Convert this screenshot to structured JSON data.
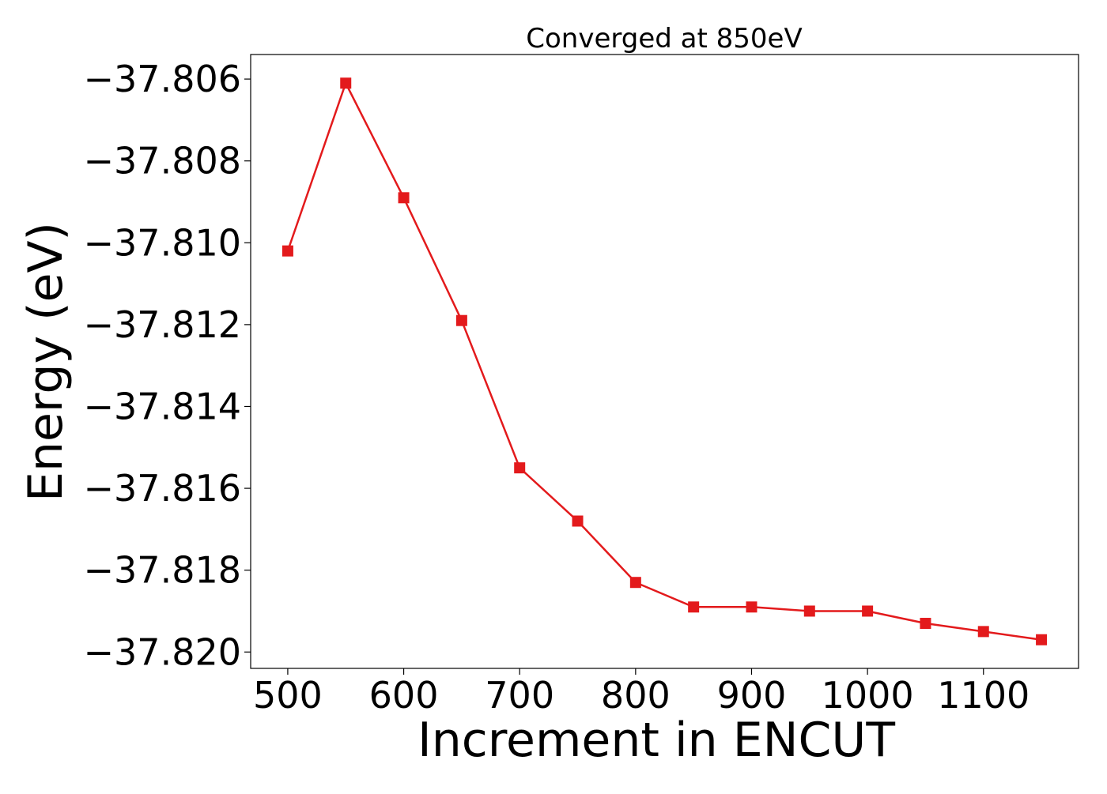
{
  "chart_data": {
    "type": "line",
    "title": "Converged at 850eV",
    "xlabel": "Increment in ENCUT",
    "ylabel": "Energy (eV)",
    "xlim": [
      468,
      1182
    ],
    "ylim": [
      -37.8204,
      -37.8054
    ],
    "x_ticks": [
      500,
      600,
      700,
      800,
      900,
      1000,
      1100
    ],
    "y_ticks": [
      -37.806,
      -37.808,
      -37.81,
      -37.812,
      -37.814,
      -37.816,
      -37.818,
      -37.82
    ],
    "y_tick_labels": [
      "−37.806",
      "−37.808",
      "−37.810",
      "−37.812",
      "−37.814",
      "−37.816",
      "−37.818",
      "−37.820"
    ],
    "grid": false,
    "legend": "none",
    "series": [
      {
        "color": "#e31a1c",
        "marker": "square",
        "x": [
          500,
          550,
          600,
          650,
          700,
          750,
          800,
          850,
          900,
          950,
          1000,
          1050,
          1100,
          1150
        ],
        "y": [
          -37.8102,
          -37.8061,
          -37.8089,
          -37.8119,
          -37.8155,
          -37.8168,
          -37.8183,
          -37.8189,
          -37.8189,
          -37.819,
          -37.819,
          -37.8193,
          -37.8195,
          -37.8197
        ]
      }
    ]
  }
}
